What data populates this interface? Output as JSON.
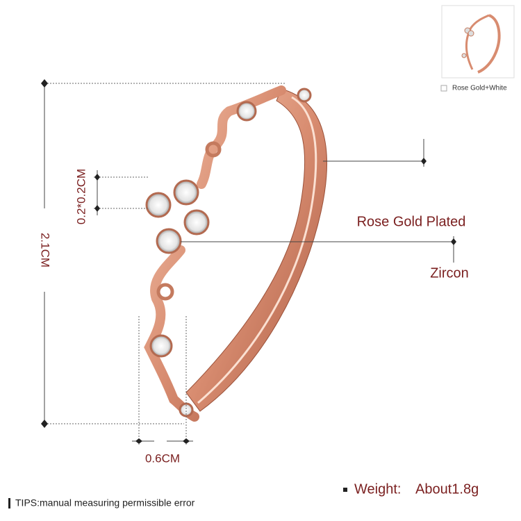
{
  "dimensions": {
    "height": "2.1CM",
    "stone": "0.2*0.2CM",
    "width": "0.6CM"
  },
  "labels": {
    "plating": "Rose Gold Plated",
    "stone": "Zircon"
  },
  "weight": {
    "label": "Weight:",
    "value": "About1.8g"
  },
  "tips": "TIPS:manual measuring permissible error",
  "variant": "Rose Gold+White"
}
